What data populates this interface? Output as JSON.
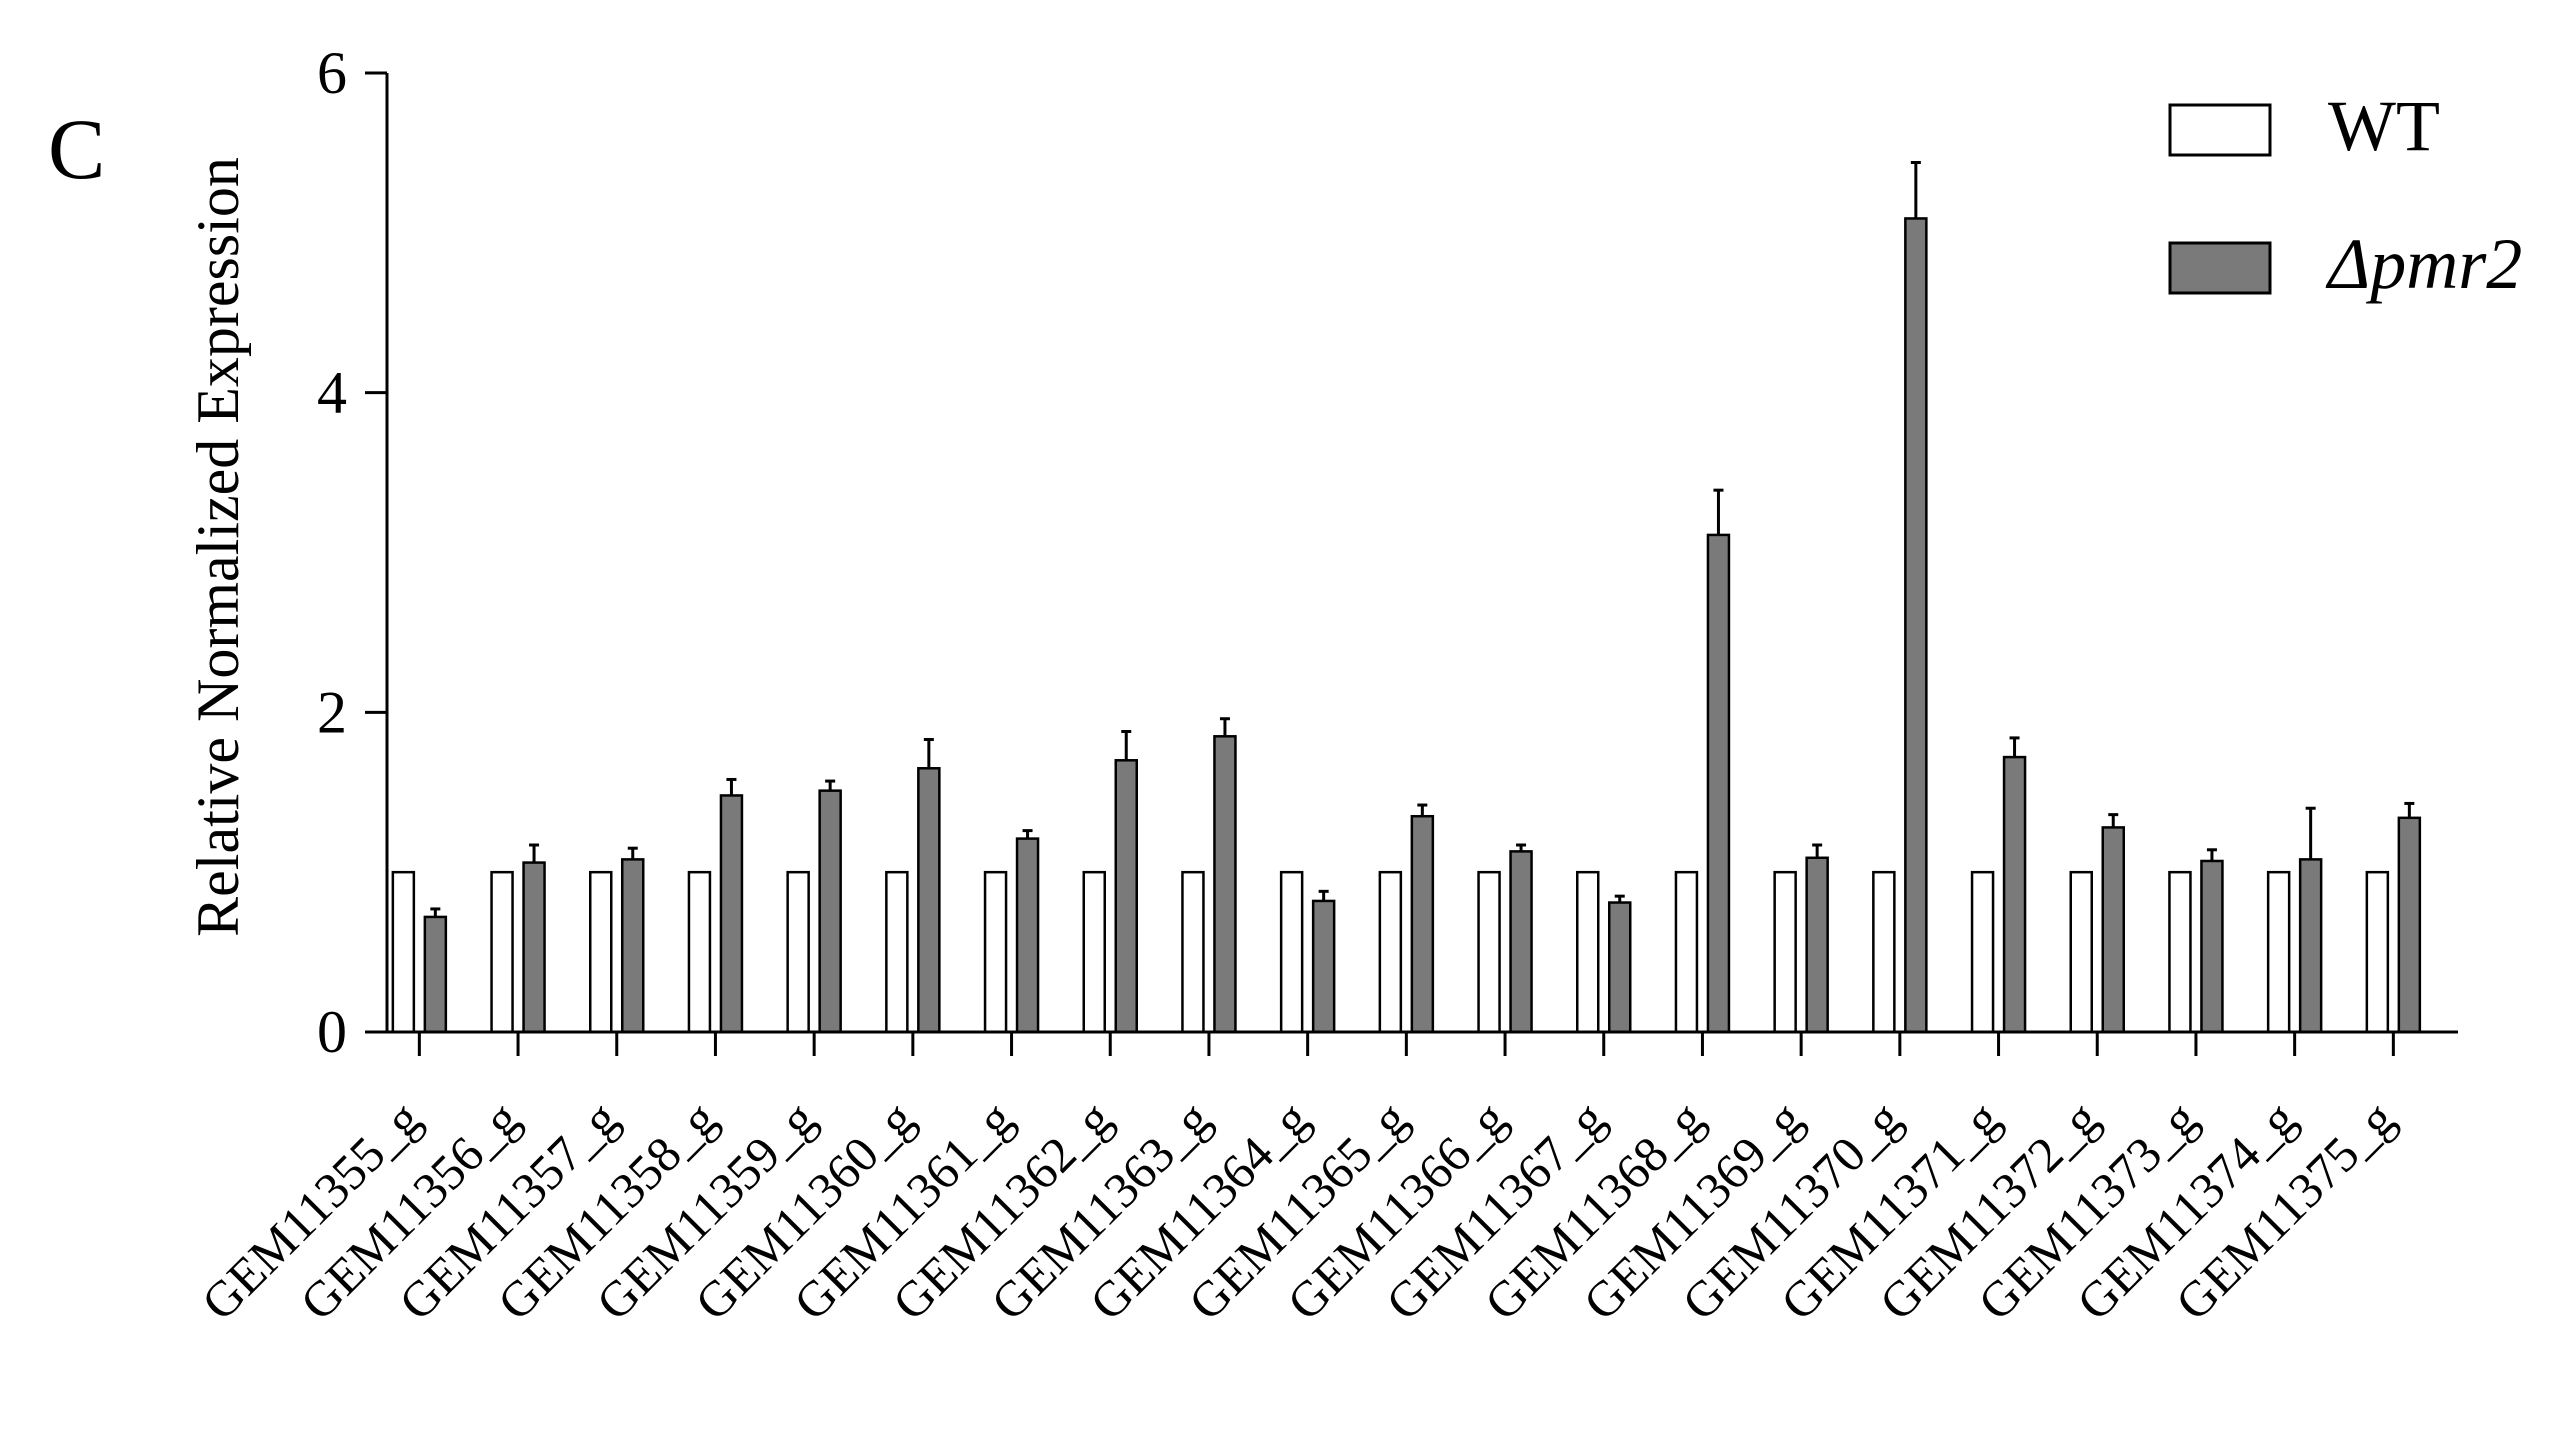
{
  "panel_label": "C",
  "chart_data": {
    "type": "bar",
    "ylabel": "Relative Normalized Expression",
    "xlabel": "",
    "ylim": [
      0,
      6
    ],
    "yticks": [
      0,
      2,
      4,
      6
    ],
    "grid": false,
    "legend_position": "top-right",
    "categories": [
      "GEM11355_g",
      "GEM11356_g",
      "GEM11357_g",
      "GEM11358_g",
      "GEM11359_g",
      "GEM11360_g",
      "GEM11361_g",
      "GEM11362_g",
      "GEM11363_g",
      "GEM11364_g",
      "GEM11365_g",
      "GEM11366_g",
      "GEM11367_g",
      "GEM11368_g",
      "GEM11369_g",
      "GEM11370_g",
      "GEM11371_g",
      "GEM11372_g",
      "GEM11373_g",
      "GEM11374_g",
      "GEM11375_g"
    ],
    "series": [
      {
        "name": "WT",
        "italic": false,
        "color": "#ffffff",
        "values": [
          1,
          1,
          1,
          1,
          1,
          1,
          1,
          1,
          1,
          1,
          1,
          1,
          1,
          1,
          1,
          1,
          1,
          1,
          1,
          1,
          1
        ],
        "errors": [
          0,
          0,
          0,
          0,
          0,
          0,
          0,
          0,
          0,
          0,
          0,
          0,
          0,
          0,
          0,
          0,
          0,
          0,
          0,
          0,
          0
        ]
      },
      {
        "name": "Δpmr2",
        "italic": true,
        "color": "#7a7a7a",
        "values": [
          0.72,
          1.06,
          1.08,
          1.48,
          1.51,
          1.65,
          1.21,
          1.7,
          1.85,
          0.82,
          1.35,
          1.13,
          0.81,
          3.11,
          1.09,
          5.09,
          1.72,
          1.28,
          1.07,
          1.08,
          1.34
        ],
        "errors": [
          0.05,
          0.11,
          0.07,
          0.1,
          0.06,
          0.18,
          0.05,
          0.18,
          0.11,
          0.06,
          0.07,
          0.04,
          0.04,
          0.28,
          0.08,
          0.35,
          0.12,
          0.08,
          0.07,
          0.32,
          0.09
        ]
      }
    ]
  }
}
